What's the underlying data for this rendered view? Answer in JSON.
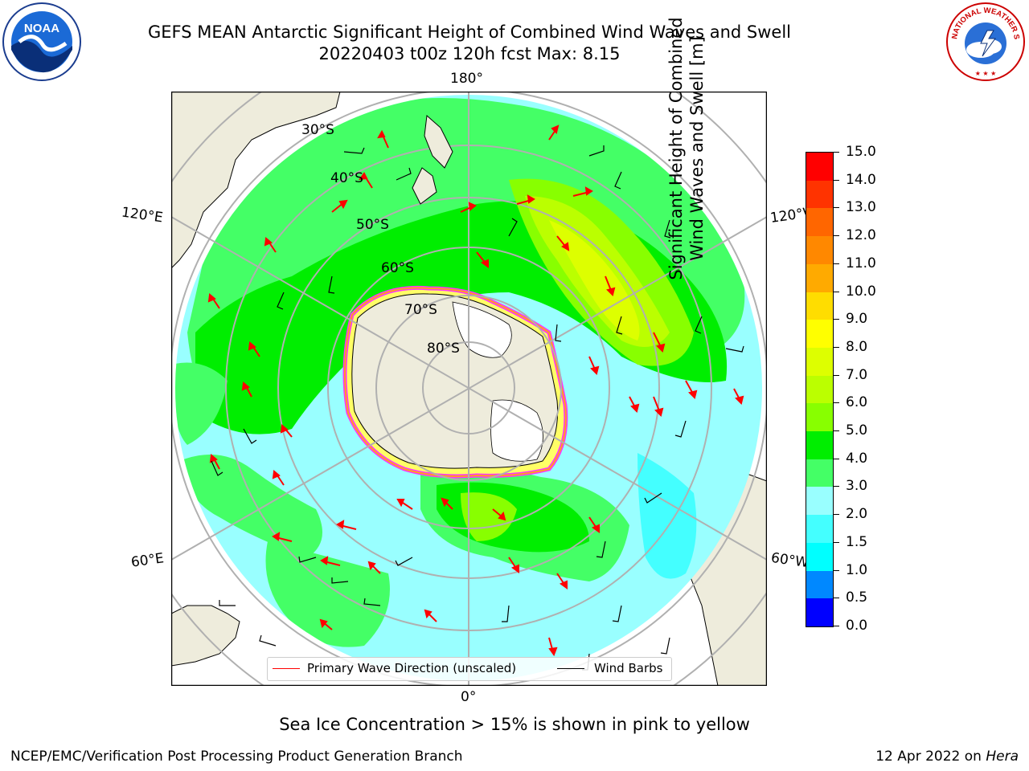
{
  "header": {
    "title_line1": "GEFS MEAN Antarctic Significant Height of Combined Wind Waves and Swell",
    "title_line2": "20220403 t00z 120h fcst   Max: 8.15",
    "left_logo_text": "NOAA",
    "right_logo_text": "NATIONAL WEATHER SERVICE"
  },
  "map": {
    "projection": "south-polar stereographic",
    "longitude_labels": [
      "180°",
      "120°E",
      "120°W",
      "60°E",
      "60°W",
      "0°"
    ],
    "latitude_labels": [
      "30°S",
      "40°S",
      "50°S",
      "60°S",
      "70°S",
      "80°S"
    ],
    "legend": {
      "primary_wave_label": "Primary Wave Direction (unscaled)",
      "wind_barbs_label": "Wind Barbs",
      "primary_wave_color": "#ff0000",
      "wind_barbs_color": "#000000"
    },
    "land_color": "#eeecdc",
    "sea_ice_colors": [
      "#ff33ff",
      "#ffa020",
      "#ffff66"
    ]
  },
  "colorbar": {
    "label_line1": "Significant Height of Combined",
    "label_line2": "Wind Waves and Swell [m]",
    "ticks": [
      "15.0",
      "14.0",
      "13.0",
      "12.0",
      "11.0",
      "10.0",
      "9.0",
      "8.0",
      "7.0",
      "6.0",
      "5.0",
      "4.0",
      "3.0",
      "2.0",
      "1.5",
      "1.0",
      "0.5",
      "0.0"
    ],
    "colors_top_to_bottom": [
      "#ff0000",
      "#ff3300",
      "#ff6600",
      "#ff8800",
      "#ffaa00",
      "#ffdd00",
      "#ffff00",
      "#ddff00",
      "#bbff00",
      "#88ff00",
      "#00ee00",
      "#44ff66",
      "#99ffff",
      "#44ffff",
      "#00ffff",
      "#0088ff",
      "#0000ff"
    ]
  },
  "note": "Sea Ice Concentration > 15% is shown in pink to yellow",
  "footer": {
    "left": "NCEP/EMC/Verification Post Processing Product Generation Branch",
    "right_date": "12 Apr 2022 on",
    "right_host": "Hera"
  }
}
